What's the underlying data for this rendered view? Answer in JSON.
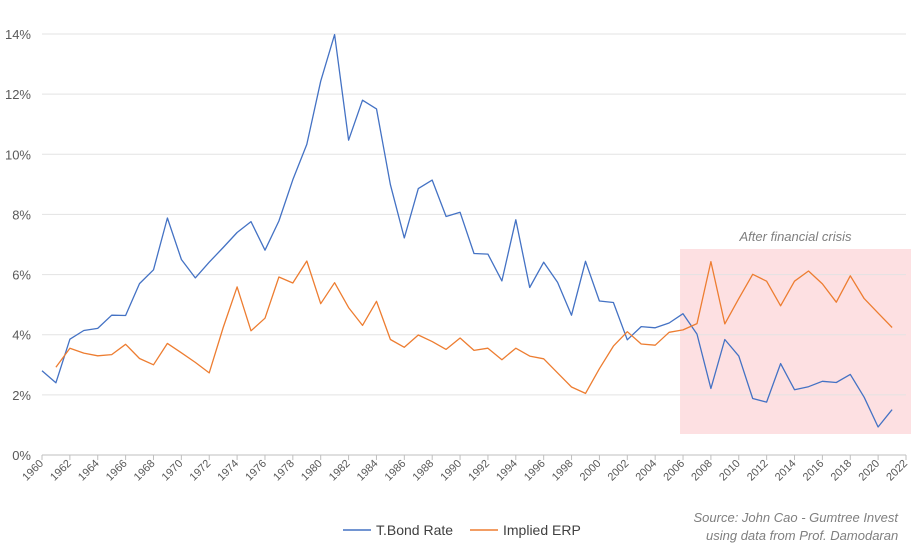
{
  "chart_data": {
    "type": "line",
    "title": "",
    "xlabel": "",
    "ylabel": "",
    "ylim": [
      0,
      14
    ],
    "xlim": [
      1960,
      2022
    ],
    "y_tick_labels": [
      "0%",
      "2%",
      "4%",
      "6%",
      "8%",
      "10%",
      "12%",
      "14%"
    ],
    "x_tick_labels": [
      "1960",
      "1962",
      "1964",
      "1966",
      "1968",
      "1970",
      "1972",
      "1974",
      "1976",
      "1978",
      "1980",
      "1982",
      "1984",
      "1986",
      "1988",
      "1990",
      "1992",
      "1994",
      "1996",
      "1998",
      "2000",
      "2002",
      "2004",
      "2006",
      "2008",
      "2010",
      "2012",
      "2014",
      "2016",
      "2018",
      "2020",
      "2022"
    ],
    "grid": "horizontal",
    "legend_position": "bottom",
    "series": [
      {
        "name": "T.Bond Rate",
        "color": "#4472c4",
        "x": [
          1960,
          1961,
          1962,
          1963,
          1964,
          1965,
          1966,
          1967,
          1968,
          1969,
          1970,
          1971,
          1972,
          1973,
          1974,
          1975,
          1976,
          1977,
          1978,
          1979,
          1980,
          1981,
          1982,
          1983,
          1984,
          1985,
          1986,
          1987,
          1988,
          1989,
          1990,
          1991,
          1992,
          1993,
          1994,
          1995,
          1996,
          1997,
          1998,
          1999,
          2000,
          2001,
          2002,
          2003,
          2004,
          2005,
          2006,
          2007,
          2008,
          2009,
          2010,
          2011,
          2012,
          2013,
          2014,
          2015,
          2016,
          2017,
          2018,
          2019,
          2020,
          2021
        ],
        "values": [
          2.8,
          2.4,
          3.85,
          4.14,
          4.21,
          4.65,
          4.64,
          5.7,
          6.16,
          7.88,
          6.5,
          5.89,
          6.41,
          6.9,
          7.4,
          7.76,
          6.81,
          7.78,
          9.15,
          10.33,
          12.43,
          13.98,
          10.47,
          11.8,
          11.51,
          8.99,
          7.22,
          8.86,
          9.14,
          7.93,
          8.07,
          6.7,
          6.68,
          5.79,
          7.82,
          5.57,
          6.41,
          5.74,
          4.65,
          6.44,
          5.12,
          5.07,
          3.83,
          4.27,
          4.23,
          4.39,
          4.7,
          4.02,
          2.21,
          3.84,
          3.29,
          1.88,
          1.76,
          3.04,
          2.17,
          2.27,
          2.45,
          2.41,
          2.68,
          1.92,
          0.93,
          1.51
        ]
      },
      {
        "name": "Implied ERP",
        "color": "#ed7d31",
        "x": [
          1961,
          1962,
          1963,
          1964,
          1965,
          1966,
          1967,
          1968,
          1969,
          1970,
          1971,
          1972,
          1973,
          1974,
          1975,
          1976,
          1977,
          1978,
          1979,
          1980,
          1981,
          1982,
          1983,
          1984,
          1985,
          1986,
          1987,
          1988,
          1989,
          1990,
          1991,
          1992,
          1993,
          1994,
          1995,
          1996,
          1997,
          1998,
          1999,
          2000,
          2001,
          2002,
          2003,
          2004,
          2005,
          2006,
          2007,
          2008,
          2009,
          2010,
          2011,
          2012,
          2013,
          2014,
          2015,
          2016,
          2017,
          2018,
          2019,
          2020,
          2021
        ],
        "values": [
          2.92,
          3.55,
          3.39,
          3.3,
          3.34,
          3.68,
          3.21,
          3.0,
          3.71,
          3.4,
          3.08,
          2.73,
          4.24,
          5.59,
          4.13,
          4.55,
          5.92,
          5.72,
          6.45,
          5.03,
          5.73,
          4.9,
          4.31,
          5.11,
          3.84,
          3.58,
          3.99,
          3.77,
          3.51,
          3.89,
          3.48,
          3.55,
          3.17,
          3.55,
          3.29,
          3.2,
          2.73,
          2.26,
          2.05,
          2.87,
          3.62,
          4.1,
          3.69,
          3.65,
          4.08,
          4.16,
          4.37,
          6.43,
          4.36,
          5.2,
          6.01,
          5.78,
          4.96,
          5.78,
          6.12,
          5.69,
          5.08,
          5.96,
          5.2,
          4.72,
          4.24
        ]
      }
    ],
    "annotations": [
      {
        "text": "After financial crisis",
        "shaded_from": 2006,
        "shaded_to": 2022,
        "shade_color": "#fde0e2"
      }
    ]
  },
  "source_line1": "Source: John Cao - Gumtree Invest",
  "source_line2": "using data from Prof. Damodaran"
}
